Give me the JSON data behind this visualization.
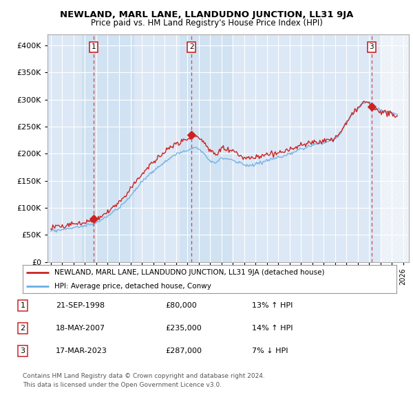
{
  "title": "NEWLAND, MARL LANE, LLANDUDNO JUNCTION, LL31 9JA",
  "subtitle": "Price paid vs. HM Land Registry's House Price Index (HPI)",
  "legend_line1": "NEWLAND, MARL LANE, LLANDUDNO JUNCTION, LL31 9JA (detached house)",
  "legend_line2": "HPI: Average price, detached house, Conwy",
  "transactions": [
    {
      "num": 1,
      "date": "21-SEP-1998",
      "price": 80000,
      "pct": "13%",
      "dir": "↑",
      "x_year": 1998.75
    },
    {
      "num": 2,
      "date": "18-MAY-2007",
      "price": 235000,
      "pct": "14%",
      "dir": "↑",
      "x_year": 2007.38
    },
    {
      "num": 3,
      "date": "17-MAR-2023",
      "price": 287000,
      "pct": "7%",
      "dir": "↓",
      "x_year": 2023.21
    }
  ],
  "footer_line1": "Contains HM Land Registry data © Crown copyright and database right 2024.",
  "footer_line2": "This data is licensed under the Open Government Licence v3.0.",
  "hpi_color": "#6aade4",
  "price_color": "#cc2222",
  "plot_bg_color": "#dce8f5",
  "hatch_bg_color": "#e8eef5",
  "ylim": [
    0,
    420000
  ],
  "yticks": [
    0,
    50000,
    100000,
    150000,
    200000,
    250000,
    300000,
    350000,
    400000
  ],
  "xlim_start": 1994.7,
  "xlim_end": 2026.5,
  "band_color": "#c8ddf0",
  "hatch_start": 2024.0
}
